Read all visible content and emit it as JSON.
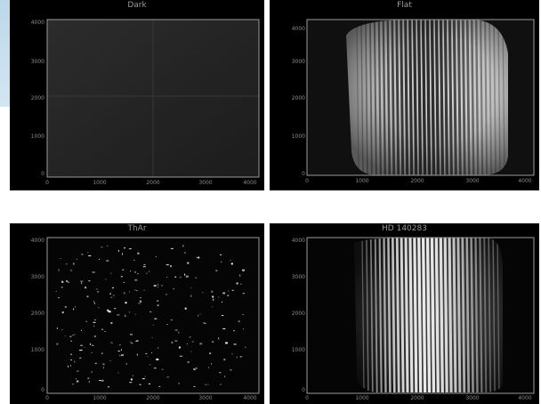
{
  "panels": [
    {
      "id": "dark",
      "title": "Dark",
      "x_ticks": [
        "0",
        "1000",
        "2000",
        "3000",
        "4000"
      ],
      "y_ticks": [
        "4000",
        "3000",
        "2000",
        "1000",
        "0"
      ]
    },
    {
      "id": "flat",
      "title": "Flat",
      "x_ticks": [
        "0",
        "1000",
        "2000",
        "3000",
        "4000"
      ],
      "y_ticks": [
        "4000",
        "3000",
        "2000",
        "1000",
        "0"
      ]
    },
    {
      "id": "thar",
      "title": "ThAr",
      "x_ticks": [
        "0",
        "1000",
        "2000",
        "3000",
        "4000"
      ],
      "y_ticks": [
        "4000",
        "3000",
        "2000",
        "1000",
        "0"
      ]
    },
    {
      "id": "star",
      "title": "HD 140283",
      "x_ticks": [
        "0",
        "1000",
        "2000",
        "3000",
        "4000"
      ],
      "y_ticks": [
        "4000",
        "3000",
        "2000",
        "1000",
        "0"
      ]
    }
  ]
}
